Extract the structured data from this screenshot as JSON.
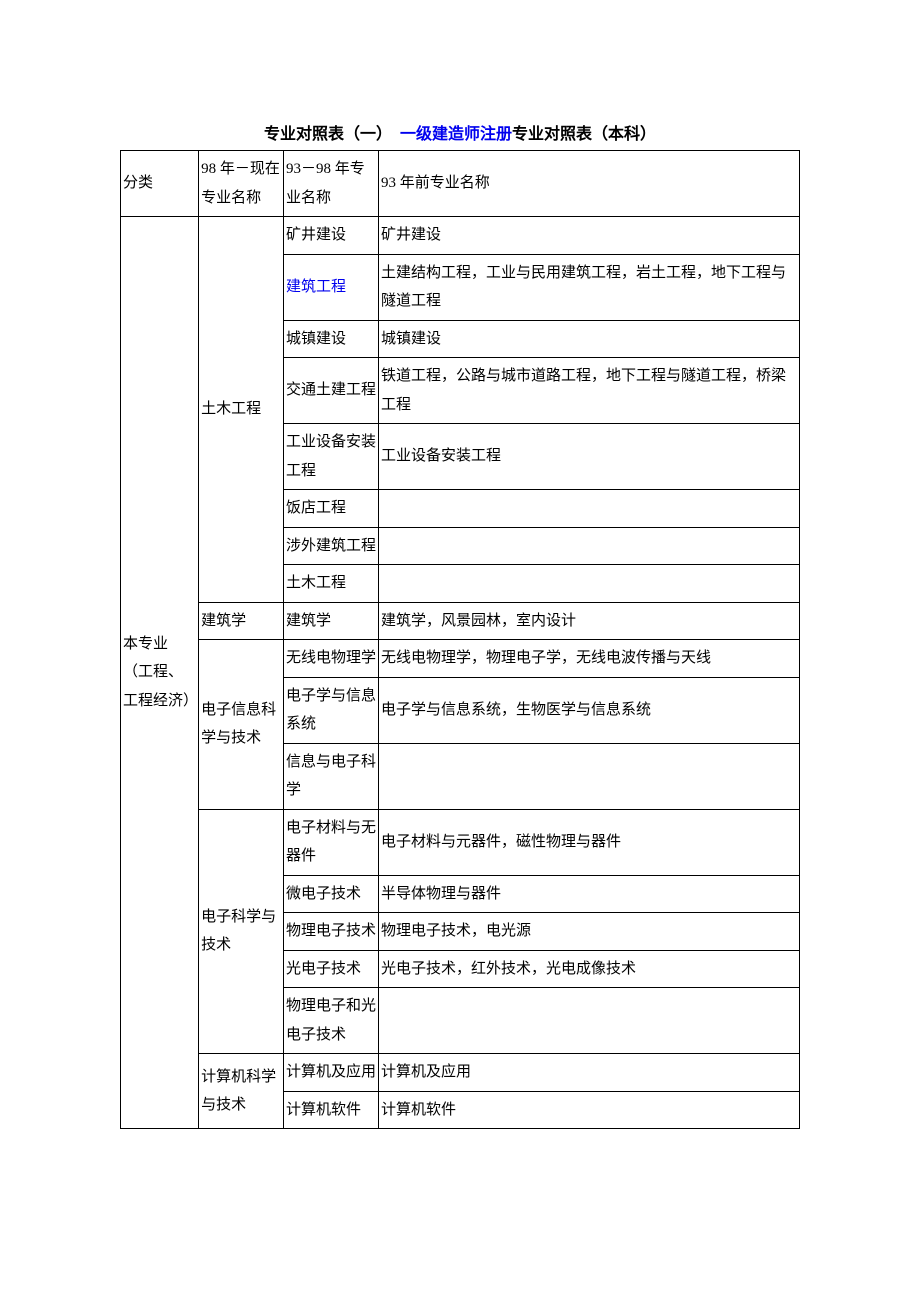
{
  "title": {
    "prefix": "专业对照表（一）　",
    "link": "一级建造师注册",
    "suffix": "专业对照表（本科）"
  },
  "header": {
    "c1": "分类",
    "c2": "98 年－现在专业名称",
    "c3": "93－98 年专业名称",
    "c4": "93 年前专业名称"
  },
  "category": {
    "line1": "本专业",
    "line2": "（工程、工程经济）"
  },
  "groups": {
    "g1": "土木工程",
    "g2": "建筑学",
    "g3": "电子信息科学与技术",
    "g4": "电子科学与技术",
    "g5": "计算机科学与技术"
  },
  "rows": {
    "r1": {
      "c3": "矿井建设",
      "c4": "矿井建设"
    },
    "r2": {
      "c3": "建筑工程",
      "c4": "土建结构工程，工业与民用建筑工程，岩土工程，地下工程与隧道工程"
    },
    "r3": {
      "c3": "城镇建设",
      "c4": "城镇建设"
    },
    "r4": {
      "c3": "交通土建工程",
      "c4": "铁道工程，公路与城市道路工程，地下工程与隧道工程，桥梁工程"
    },
    "r5": {
      "c3": "工业设备安装工程",
      "c4": "工业设备安装工程"
    },
    "r6": {
      "c3": "饭店工程",
      "c4": ""
    },
    "r7": {
      "c3": "涉外建筑工程",
      "c4": ""
    },
    "r8": {
      "c3": "土木工程",
      "c4": ""
    },
    "r9": {
      "c3": "建筑学",
      "c4": "建筑学，风景园林，室内设计"
    },
    "r10": {
      "c3": "无线电物理学",
      "c4": "无线电物理学，物理电子学，无线电波传播与天线"
    },
    "r11": {
      "c3": "电子学与信息系统",
      "c4": "电子学与信息系统，生物医学与信息系统"
    },
    "r12": {
      "c3": "信息与电子科学",
      "c4": ""
    },
    "r13": {
      "c3": "电子材料与无器件",
      "c4": "电子材料与元器件，磁性物理与器件"
    },
    "r14": {
      "c3": "微电子技术",
      "c4": "半导体物理与器件"
    },
    "r15": {
      "c3": "物理电子技术",
      "c4": "物理电子技术，电光源"
    },
    "r16": {
      "c3": "光电子技术",
      "c4": "光电子技术，红外技术，光电成像技术"
    },
    "r17": {
      "c3": "物理电子和光电子技术",
      "c4": ""
    },
    "r18": {
      "c3": "计算机及应用",
      "c4": "计算机及应用"
    },
    "r19": {
      "c3": "计算机软件",
      "c4": "计算机软件"
    }
  }
}
